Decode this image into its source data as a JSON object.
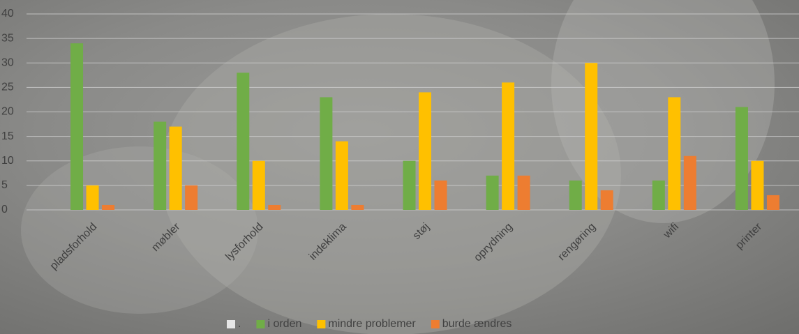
{
  "chart_data": {
    "type": "bar",
    "categories": [
      "pladsforhold",
      "møbler",
      "lysforhold",
      "indeklima",
      "støj",
      "oprydning",
      "rengøring",
      "wifi",
      "printer"
    ],
    "series": [
      {
        "name": ".",
        "color": "#e6e6e6",
        "values": [
          null,
          null,
          null,
          null,
          null,
          null,
          null,
          null,
          null
        ]
      },
      {
        "name": "i orden",
        "color": "#70ad47",
        "values": [
          34,
          18,
          28,
          23,
          10,
          7,
          6,
          6,
          21
        ]
      },
      {
        "name": "mindre problemer",
        "color": "#ffc000",
        "values": [
          5,
          17,
          10,
          14,
          24,
          26,
          30,
          23,
          10
        ]
      },
      {
        "name": "burde ændres",
        "color": "#ed7d31",
        "values": [
          1,
          5,
          1,
          1,
          6,
          7,
          4,
          11,
          3
        ]
      }
    ],
    "ylim": [
      0,
      40
    ],
    "yticks": [
      0,
      5,
      10,
      15,
      20,
      25,
      30,
      35,
      40
    ],
    "grid": true,
    "legend": "bottom"
  }
}
